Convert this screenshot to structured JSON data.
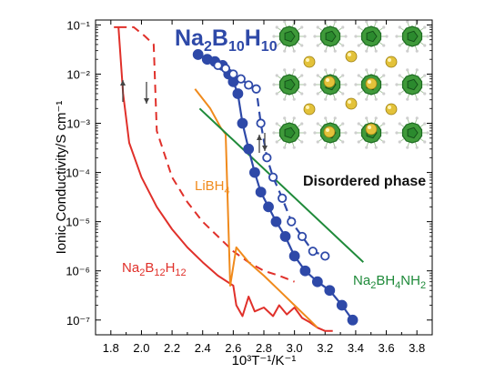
{
  "chart_data": {
    "type": "line",
    "title": "Na2B10H10",
    "xlabel": "10³T⁻¹/K⁻¹",
    "ylabel": "Ionic Conductivity/S cm⁻¹",
    "xlim": [
      1.7,
      3.9
    ],
    "ylim_log10": [
      -7.3,
      -0.9
    ],
    "y_scale": "log",
    "x_ticks": [
      "1.8",
      "2.0",
      "2.2",
      "2.4",
      "2.6",
      "2.8",
      "3.0",
      "3.2",
      "3.4",
      "3.6",
      "3.8"
    ],
    "y_ticks": [
      "10⁻¹",
      "10⁻²",
      "10⁻³",
      "10⁻⁴",
      "10⁻⁵",
      "10⁻⁶",
      "10⁻⁷"
    ],
    "series": [
      {
        "name": "Na2B12H12",
        "color": "#e0302a",
        "style": "solid",
        "x": [
          1.82,
          1.85,
          1.88,
          1.92,
          2.0,
          2.1,
          2.2,
          2.3,
          2.4,
          2.5,
          2.6,
          2.62,
          2.66,
          2.7,
          2.74,
          2.8,
          2.86,
          2.9,
          2.95,
          3.0,
          3.05,
          3.1,
          3.15,
          3.2,
          3.25
        ],
        "y": [
          0.09,
          0.09,
          0.004,
          0.0004,
          8e-05,
          2e-05,
          7e-06,
          3e-06,
          1.5e-06,
          8e-07,
          5e-07,
          2e-07,
          1.2e-07,
          3e-07,
          1.5e-07,
          1.8e-07,
          1.2e-07,
          2e-07,
          1.3e-07,
          1.8e-07,
          1.1e-07,
          9e-08,
          7e-08,
          6e-08,
          6e-08
        ]
      },
      {
        "name": "Na2B12H12 (heating)",
        "color": "#e0302a",
        "style": "dashed",
        "x": [
          1.85,
          1.95,
          2.02,
          2.08,
          2.1,
          2.2,
          2.3,
          2.4,
          2.5,
          2.6,
          2.7,
          2.8,
          2.9,
          3.0
        ],
        "y": [
          0.09,
          0.09,
          0.06,
          0.04,
          0.0007,
          8e-05,
          2.5e-05,
          1e-05,
          5e-06,
          2.5e-06,
          1.5e-06,
          1e-06,
          8e-07,
          6e-07
        ]
      },
      {
        "name": "LiBH4",
        "color": "#f08a1c",
        "style": "solid",
        "x": [
          2.35,
          2.45,
          2.52,
          2.55,
          2.58,
          2.62,
          2.7,
          2.8,
          2.9,
          3.0,
          3.1,
          3.15
        ],
        "y": [
          0.005,
          0.002,
          0.0008,
          0.0006,
          5e-07,
          3e-06,
          1.5e-06,
          8e-07,
          4e-07,
          2e-07,
          1e-07,
          7e-08
        ]
      },
      {
        "name": "Na2BH4NH2",
        "color": "#1f8a3a",
        "style": "solid",
        "x": [
          2.38,
          3.45
        ],
        "y": [
          0.002,
          1.5e-06
        ]
      },
      {
        "name": "Na2B10H10 (filled)",
        "color": "#2e49a8",
        "style": "solid",
        "marker": "filled-circle",
        "x": [
          2.37,
          2.43,
          2.48,
          2.53,
          2.57,
          2.6,
          2.63,
          2.66,
          2.7,
          2.74,
          2.78,
          2.83,
          2.88,
          2.94,
          3.0,
          3.07,
          3.15,
          3.23,
          3.31,
          3.38
        ],
        "y": [
          0.025,
          0.02,
          0.018,
          0.015,
          0.01,
          0.007,
          0.004,
          0.001,
          0.0003,
          0.0001,
          4e-05,
          2e-05,
          1e-05,
          5e-06,
          2e-06,
          1e-06,
          6e-07,
          4e-07,
          2e-07,
          1e-07
        ]
      },
      {
        "name": "Na2B10H10 (open)",
        "color": "#2e49a8",
        "style": "dashed",
        "marker": "open-circle",
        "x": [
          2.5,
          2.55,
          2.6,
          2.65,
          2.7,
          2.75,
          2.78,
          2.82,
          2.86,
          2.92,
          2.98,
          3.05,
          3.12,
          3.2
        ],
        "y": [
          0.015,
          0.013,
          0.01,
          0.008,
          0.006,
          0.005,
          0.001,
          0.0002,
          8e-05,
          3e-05,
          1e-05,
          5e-06,
          2.5e-06,
          2e-06
        ]
      }
    ],
    "annotations": {
      "title": "Na2B10H10",
      "libh4": "LiBH4",
      "na2b12h12": "Na2B12H12",
      "na2bh4nh2": "Na2BH4NH2",
      "inset_caption": "Disordered phase"
    },
    "colors": {
      "na2b12h12": "#e0302a",
      "libh4": "#f08a1c",
      "na2bh4nh2": "#1f8a3a",
      "na2b10h10": "#2e49a8",
      "cluster": "#2b8a2e",
      "sodium": "#e3c23a"
    },
    "grid": false,
    "legend": "none"
  }
}
